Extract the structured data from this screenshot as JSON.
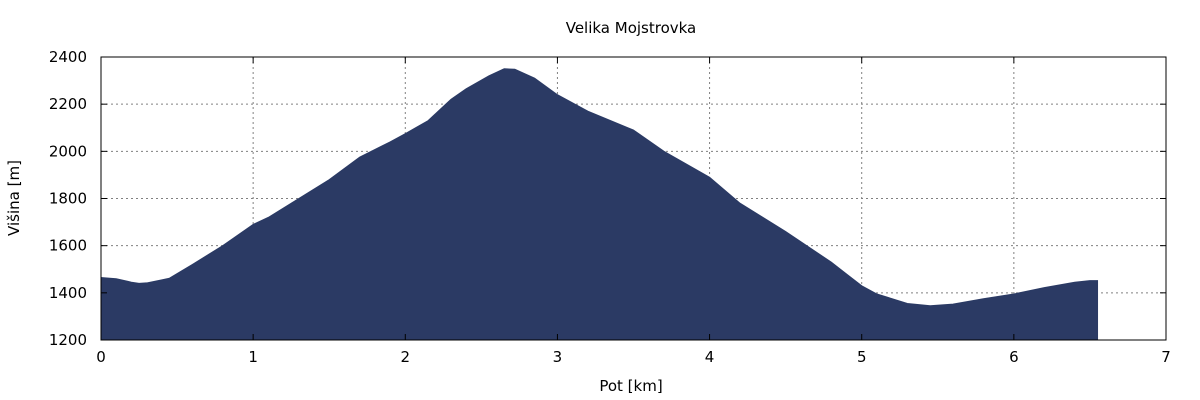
{
  "chart_data": {
    "type": "area",
    "title": "Velika Mojstrovka",
    "xlabel": "Pot [km]",
    "ylabel": "Višina [m]",
    "xlim": [
      0,
      7
    ],
    "ylim": [
      1200,
      2400
    ],
    "x_ticks": [
      0,
      1,
      2,
      3,
      4,
      5,
      6,
      7
    ],
    "y_ticks": [
      1200,
      1400,
      1600,
      1800,
      2000,
      2200,
      2400
    ],
    "grid": true,
    "fill_color": "#2b3a64",
    "series": [
      {
        "x": [
          0,
          0.1,
          0.2,
          0.25,
          0.3,
          0.4,
          0.45,
          0.6,
          0.8,
          1.0,
          1.1,
          1.3,
          1.5,
          1.7,
          1.9,
          2.0,
          2.15,
          2.3,
          2.4,
          2.55,
          2.65,
          2.72,
          2.85,
          3.0,
          3.2,
          3.5,
          3.7,
          4.0,
          4.2,
          4.5,
          4.8,
          4.9,
          5.0,
          5.1,
          5.3,
          5.45,
          5.6,
          5.8,
          6.0,
          6.2,
          6.4,
          6.5,
          6.55
        ],
        "y": [
          1465,
          1460,
          1445,
          1440,
          1442,
          1455,
          1462,
          1520,
          1600,
          1690,
          1720,
          1800,
          1880,
          1975,
          2040,
          2075,
          2130,
          2220,
          2265,
          2320,
          2350,
          2348,
          2310,
          2240,
          2170,
          2090,
          2000,
          1890,
          1780,
          1660,
          1530,
          1480,
          1430,
          1395,
          1355,
          1345,
          1352,
          1375,
          1395,
          1422,
          1445,
          1452,
          1452
        ]
      }
    ]
  }
}
